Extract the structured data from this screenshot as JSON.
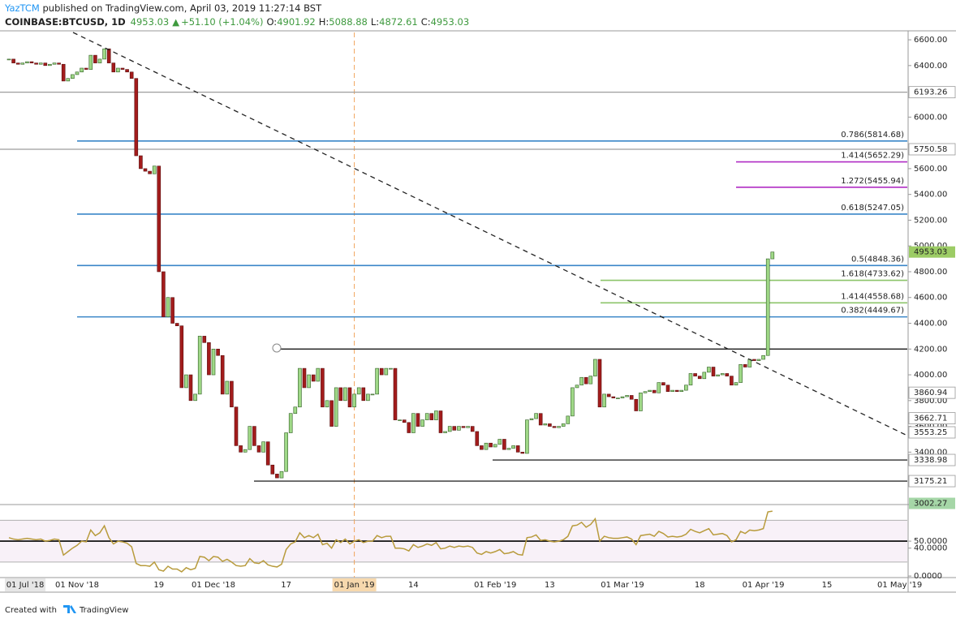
{
  "header": {
    "author": "YazTCM",
    "published": " published on TradingView.com, April 03, 2019 11:27:14 BST",
    "symbol": "COINBASE:BTCUSD, 1D",
    "last": "4953.03",
    "arrow": "▲",
    "change": "+51.10 (+1.04%)",
    "ohlc": [
      {
        "label": "O:",
        "value": "4901.92"
      },
      {
        "label": "H:",
        "value": "5088.88"
      },
      {
        "label": "L:",
        "value": "4872.61"
      },
      {
        "label": "C:",
        "value": "4953.03"
      }
    ]
  },
  "footer": {
    "text": "Created with",
    "brand": "TradingView"
  },
  "chart_data": [
    {
      "type": "candlestick",
      "up_color": "#9fd887",
      "down_color": "#a31c1c",
      "pinned_x_label": "01 Jul '18",
      "crosshair_index": 76,
      "categories": [
        null,
        null,
        null,
        null,
        null,
        null,
        null,
        null,
        null,
        null,
        null,
        null,
        null,
        null,
        null,
        "01 Nov '18",
        null,
        null,
        null,
        null,
        null,
        null,
        null,
        null,
        null,
        null,
        null,
        null,
        null,
        null,
        null,
        null,
        null,
        "19",
        null,
        null,
        null,
        null,
        null,
        null,
        null,
        null,
        null,
        null,
        null,
        "01 Dec '18",
        null,
        null,
        null,
        null,
        null,
        null,
        null,
        null,
        null,
        null,
        null,
        null,
        null,
        null,
        null,
        "17",
        null,
        null,
        null,
        null,
        null,
        null,
        null,
        null,
        null,
        null,
        null,
        null,
        null,
        null,
        "01 Jan '19",
        null,
        null,
        null,
        null,
        null,
        null,
        null,
        null,
        null,
        null,
        null,
        null,
        "14",
        null,
        null,
        null,
        null,
        null,
        null,
        null,
        null,
        null,
        null,
        null,
        null,
        null,
        null,
        null,
        null,
        null,
        "01 Feb '19",
        null,
        null,
        null,
        null,
        null,
        null,
        null,
        null,
        null,
        null,
        null,
        "13",
        null,
        null,
        null,
        null,
        null,
        null,
        null,
        null,
        null,
        null,
        null,
        null,
        null,
        null,
        null,
        "01 Mar '19",
        null,
        null,
        null,
        null,
        null,
        null,
        null,
        null,
        null,
        null,
        null,
        null,
        null,
        null,
        null,
        null,
        "18",
        null,
        null,
        null,
        null,
        null,
        null,
        null,
        null,
        null,
        null,
        null,
        null,
        null,
        "01 Apr '19",
        null,
        null,
        null,
        null,
        null,
        null,
        null,
        null,
        null,
        null,
        null,
        null,
        null,
        "15",
        null,
        null,
        null,
        null,
        null,
        null,
        null,
        null,
        null,
        null,
        null,
        null,
        null,
        null,
        null,
        "01 May '19"
      ],
      "values": [
        6450,
        6420,
        6410,
        6420,
        6430,
        6420,
        6410,
        6420,
        6400,
        6410,
        6420,
        6410,
        6280,
        6300,
        6330,
        6350,
        6380,
        6370,
        6480,
        6420,
        6450,
        6530,
        6420,
        6350,
        6380,
        6370,
        6350,
        6300,
        5700,
        5600,
        5580,
        5560,
        5620,
        4800,
        4450,
        4600,
        4400,
        4380,
        3900,
        4000,
        3800,
        3850,
        4300,
        4250,
        4000,
        4200,
        4150,
        3850,
        3950,
        3750,
        3450,
        3400,
        3420,
        3600,
        3450,
        3400,
        3480,
        3300,
        3230,
        3200,
        3250,
        3550,
        3700,
        3750,
        4050,
        3900,
        4000,
        3950,
        4050,
        3750,
        3800,
        3600,
        3900,
        3800,
        3900,
        3750,
        3850,
        3900,
        3800,
        3850,
        3850,
        4050,
        4000,
        4050,
        4050,
        3650,
        3650,
        3630,
        3550,
        3700,
        3600,
        3650,
        3700,
        3650,
        3720,
        3550,
        3560,
        3600,
        3570,
        3600,
        3590,
        3600,
        3560,
        3450,
        3420,
        3470,
        3440,
        3460,
        3500,
        3420,
        3430,
        3450,
        3400,
        3390,
        3650,
        3660,
        3700,
        3610,
        3620,
        3600,
        3590,
        3600,
        3620,
        3680,
        3900,
        3920,
        3980,
        3930,
        3990,
        4120,
        3750,
        3850,
        3830,
        3820,
        3820,
        3830,
        3840,
        3810,
        3720,
        3860,
        3870,
        3880,
        3860,
        3940,
        3920,
        3870,
        3880,
        3870,
        3880,
        3920,
        4010,
        3990,
        3970,
        4020,
        4060,
        3990,
        4000,
        4010,
        3990,
        3920,
        3940,
        4080,
        4060,
        4120,
        4110,
        4120,
        4150,
        4900,
        4953.03,
        null,
        null,
        null,
        null,
        null,
        null,
        null,
        null,
        null,
        null,
        null,
        null,
        null,
        null,
        null,
        null,
        null,
        null,
        null,
        null,
        null,
        null,
        null,
        null,
        null,
        null,
        null,
        null
      ],
      "ylim": [
        2993,
        6657
      ],
      "yticks": [
        {
          "value": 3400,
          "label": "3400.00"
        },
        {
          "value": 3600,
          "label": "3600.00"
        },
        {
          "value": 3800,
          "label": "3800.00"
        },
        {
          "value": 4000,
          "label": "4000.00"
        },
        {
          "value": 4200,
          "label": "4200.00"
        },
        {
          "value": 4400,
          "label": "4400.00"
        },
        {
          "value": 4600,
          "label": "4600.00"
        },
        {
          "value": 4800,
          "label": "4800.00"
        },
        {
          "value": 5000,
          "label": "5000.00"
        },
        {
          "value": 5200,
          "label": "5200.00"
        },
        {
          "value": 5400,
          "label": "5400.00"
        },
        {
          "value": 5600,
          "label": "5600.00"
        },
        {
          "value": 6000,
          "label": "6000.00"
        },
        {
          "value": 6400,
          "label": "6400.00"
        },
        {
          "value": 6600,
          "label": "6600.00"
        }
      ],
      "grid": false,
      "fib_levels": [
        {
          "value": 5814.68,
          "label": "0.786(5814.68)",
          "color": "#3a86c8"
        },
        {
          "value": 5247.05,
          "label": "0.618(5247.05)",
          "color": "#3a86c8"
        },
        {
          "value": 4848.36,
          "label": "0.5(4848.36)",
          "color": "#3a86c8"
        },
        {
          "value": 4449.67,
          "label": "0.382(4449.67)",
          "color": "#3a86c8"
        },
        {
          "value": 5652.29,
          "label": "1.414(5652.29)",
          "color": "#b02cc4"
        },
        {
          "value": 5455.94,
          "label": "1.272(5455.94)",
          "color": "#b02cc4"
        },
        {
          "value": 4733.62,
          "label": "1.618(4733.62)",
          "color": "#8cc46a"
        },
        {
          "value": 4558.68,
          "label": "1.414(4558.68)",
          "color": "#8cc46a"
        }
      ],
      "lines": [
        {
          "value": 4200,
          "color": "#000000"
        }
      ],
      "price_labels": [
        {
          "value": 6193.26,
          "line": "#9e9e9e"
        },
        {
          "value": 5750.58,
          "line": "#9e9e9e"
        },
        {
          "value": 4953.03,
          "bg": "#9ccc65"
        },
        {
          "value": 3860.94
        },
        {
          "value": 3662.71
        },
        {
          "value": 3553.25
        },
        {
          "value": 3338.98,
          "line": "#000000"
        },
        {
          "value": 3175.21,
          "line": "#000000"
        },
        {
          "value": 3002.27,
          "bg": "#a5d6a7"
        }
      ]
    },
    {
      "type": "line",
      "color": "#b89b3c",
      "values": [
        55,
        53,
        52,
        53,
        54,
        53,
        52,
        53,
        50,
        51,
        53,
        52,
        30,
        35,
        40,
        44,
        50,
        49,
        66,
        58,
        62,
        72,
        55,
        46,
        50,
        49,
        47,
        42,
        18,
        15,
        15,
        14,
        20,
        9,
        7,
        14,
        10,
        10,
        6,
        12,
        9,
        11,
        28,
        27,
        22,
        28,
        27,
        21,
        24,
        20,
        15,
        14,
        15,
        25,
        19,
        18,
        22,
        16,
        14,
        13,
        17,
        38,
        46,
        49,
        62,
        55,
        58,
        55,
        60,
        45,
        47,
        40,
        52,
        48,
        53,
        46,
        50,
        52,
        48,
        50,
        50,
        58,
        55,
        57,
        57,
        40,
        40,
        39,
        36,
        45,
        41,
        43,
        46,
        44,
        48,
        39,
        40,
        43,
        41,
        43,
        42,
        43,
        41,
        33,
        31,
        35,
        33,
        35,
        38,
        32,
        33,
        35,
        31,
        30,
        55,
        56,
        59,
        51,
        52,
        50,
        49,
        50,
        52,
        57,
        72,
        73,
        77,
        70,
        74,
        82,
        50,
        57,
        55,
        54,
        54,
        55,
        56,
        53,
        45,
        58,
        59,
        60,
        57,
        64,
        61,
        56,
        57,
        56,
        57,
        60,
        67,
        64,
        62,
        65,
        68,
        59,
        60,
        61,
        58,
        49,
        52,
        64,
        61,
        66,
        65,
        66,
        68,
        92,
        93
      ],
      "ylim": [
        -29,
        99
      ],
      "yticks": [
        {
          "value": 50,
          "label": "50.0000"
        },
        {
          "value": 40,
          "label": "40.0000"
        },
        {
          "value": 0,
          "label": "0.0000"
        }
      ],
      "bands": [
        {
          "value": 80,
          "color": "#b0b0b0"
        },
        {
          "value": 50,
          "color": "#000000"
        },
        {
          "value": 20,
          "color": "#b0b0b0"
        }
      ]
    }
  ]
}
